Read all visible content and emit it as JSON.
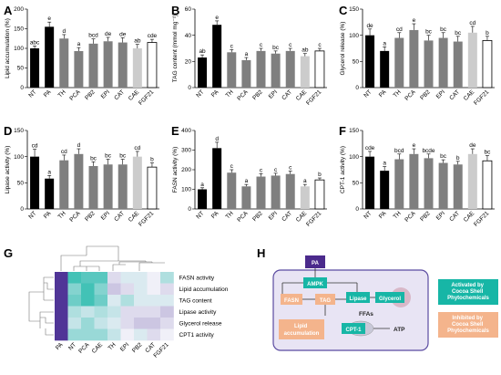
{
  "panel_labels": {
    "A": "A",
    "B": "B",
    "C": "C",
    "D": "D",
    "E": "E",
    "F": "F",
    "G": "G",
    "H": "H"
  },
  "colors": {
    "NT": "#000000",
    "PA": "#000000",
    "treat": "#7f7f7f",
    "CAE": "#cccccc",
    "FGF21": "#ffffff",
    "teal": "#17b6a6",
    "orange": "#f4b48c",
    "diagram_bg": "#e8e4f4",
    "diagram_border": "#5a4aa0",
    "pa_box": "#4b2a8c"
  },
  "chart_data": [
    {
      "type": "bar",
      "panel": "A",
      "ylabel": "Lipid accumulation (%)",
      "ylim": [
        0,
        200
      ],
      "yticks": [
        0,
        50,
        100,
        150,
        200
      ],
      "categories": [
        "NT",
        "PA",
        "TH",
        "PCA",
        "PB2",
        "EPI",
        "CAT",
        "CAE",
        "FGF21"
      ],
      "values": [
        100,
        155,
        125,
        93,
        112,
        118,
        115,
        100,
        115
      ],
      "errors": [
        6,
        12,
        10,
        9,
        12,
        10,
        12,
        10,
        8
      ],
      "sig": [
        "abc",
        "e",
        "d",
        "a",
        "bcd",
        "de",
        "de",
        "ab",
        "cde"
      ]
    },
    {
      "type": "bar",
      "panel": "B",
      "ylabel": "TAG content (mmol mg⁻¹)",
      "ylim": [
        0,
        60
      ],
      "yticks": [
        0,
        20,
        40,
        60
      ],
      "categories": [
        "NT",
        "PA",
        "TH",
        "PCA",
        "PB2",
        "EPI",
        "CAT",
        "CAE",
        "FGF21"
      ],
      "values": [
        23,
        48,
        27,
        21,
        28,
        26,
        28,
        24,
        28
      ],
      "errors": [
        2,
        3,
        2,
        2,
        2,
        2,
        2,
        2,
        2
      ],
      "sig": [
        "ab",
        "e",
        "c",
        "a",
        "c",
        "bc",
        "c",
        "ab",
        "c"
      ]
    },
    {
      "type": "bar",
      "panel": "C",
      "ylabel": "Glycerol release (%)",
      "ylim": [
        0,
        150
      ],
      "yticks": [
        0,
        50,
        100,
        150
      ],
      "categories": [
        "NT",
        "PA",
        "TH",
        "PCA",
        "PB2",
        "EPI",
        "CAT",
        "CAE",
        "FGF21"
      ],
      "values": [
        100,
        70,
        95,
        110,
        90,
        95,
        88,
        105,
        90
      ],
      "errors": [
        12,
        8,
        10,
        12,
        10,
        10,
        10,
        12,
        8
      ],
      "sig": [
        "de",
        "a",
        "cd",
        "e",
        "bc",
        "bc",
        "bc",
        "cd",
        "b"
      ]
    },
    {
      "type": "bar",
      "panel": "D",
      "ylabel": "Lipase activity (%)",
      "ylim": [
        0,
        150
      ],
      "yticks": [
        0,
        50,
        100,
        150
      ],
      "categories": [
        "NT",
        "PA",
        "TH",
        "PCA",
        "PB2",
        "EPI",
        "CAT",
        "CAE",
        "FGF21"
      ],
      "values": [
        100,
        58,
        93,
        105,
        82,
        85,
        85,
        100,
        80
      ],
      "errors": [
        14,
        6,
        10,
        10,
        8,
        10,
        10,
        10,
        8
      ],
      "sig": [
        "cd",
        "a",
        "cd",
        "d",
        "bc",
        "bc",
        "bc",
        "cd",
        "b"
      ]
    },
    {
      "type": "bar",
      "panel": "E",
      "ylabel": "FASN activity (%)",
      "ylim": [
        0,
        400
      ],
      "yticks": [
        0,
        100,
        200,
        300,
        400
      ],
      "categories": [
        "NT",
        "PA",
        "TH",
        "PCA",
        "PB2",
        "EPI",
        "CAT",
        "CAE",
        "FGF21"
      ],
      "values": [
        100,
        310,
        185,
        115,
        165,
        170,
        178,
        115,
        148
      ],
      "errors": [
        8,
        30,
        15,
        10,
        15,
        12,
        15,
        10,
        10
      ],
      "sig": [
        "a",
        "d",
        "c",
        "a",
        "c",
        "c",
        "c",
        "a",
        "b"
      ]
    },
    {
      "type": "bar",
      "panel": "F",
      "ylabel": "CPT-1 activity (%)",
      "ylim": [
        0,
        150
      ],
      "yticks": [
        0,
        50,
        100,
        150
      ],
      "categories": [
        "NT",
        "PA",
        "TH",
        "PCA",
        "PB2",
        "EPI",
        "CAT",
        "CAE",
        "FGF21"
      ],
      "values": [
        100,
        73,
        95,
        105,
        97,
        88,
        85,
        105,
        92
      ],
      "errors": [
        10,
        8,
        10,
        10,
        8,
        6,
        6,
        10,
        10
      ],
      "sig": [
        "cde",
        "a",
        "bcd",
        "e",
        "bcde",
        "bc",
        "b",
        "de",
        "bc"
      ]
    },
    {
      "type": "heatmap",
      "panel": "G",
      "rows": [
        "FASN activity",
        "Lipid accumulation",
        "TAG content",
        "Lipase activity",
        "Glycerol release",
        "CPT1 activity"
      ],
      "columns": [
        "PA",
        "NT",
        "PCA",
        "CAE",
        "TH",
        "EPI",
        "PB2",
        "CAT",
        "FGF21"
      ],
      "values": [
        [
          0.95,
          0.1,
          0.15,
          0.15,
          0.55,
          0.45,
          0.45,
          0.5,
          0.35
        ],
        [
          0.95,
          0.25,
          0.1,
          0.25,
          0.6,
          0.55,
          0.45,
          0.5,
          0.55
        ],
        [
          0.95,
          0.2,
          0.1,
          0.2,
          0.45,
          0.35,
          0.45,
          0.45,
          0.45
        ],
        [
          0.95,
          0.35,
          0.4,
          0.35,
          0.4,
          0.55,
          0.55,
          0.55,
          0.6
        ],
        [
          0.95,
          0.4,
          0.3,
          0.4,
          0.45,
          0.55,
          0.6,
          0.6,
          0.55
        ],
        [
          0.95,
          0.3,
          0.3,
          0.3,
          0.4,
          0.5,
          0.45,
          0.55,
          0.5
        ]
      ]
    }
  ],
  "diagram": {
    "pa": "PA",
    "ampk": "AMPK",
    "fasn": "FASN",
    "tag": "TAG",
    "lipase": "Lipase",
    "glycerol": "Glycerol",
    "ffas": "FFAs",
    "cpt1": "CPT-1",
    "atp": "ATP",
    "lipid": "Lipid accumulation",
    "legend_activated": "Activated by Cocoa Shell Phytochemicals",
    "legend_inhibited": "Inhibited by Cocoa Shell Phytochemicals"
  }
}
